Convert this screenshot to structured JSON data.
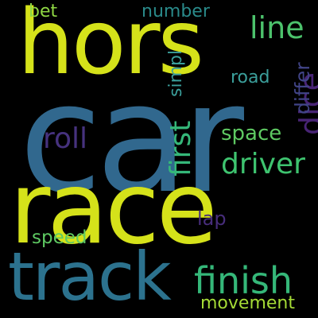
{
  "cloud": {
    "background": "#000000",
    "words": {
      "car": {
        "text": "car",
        "color": "#31688e"
      },
      "race": {
        "text": "race",
        "color": "#d5e21a"
      },
      "hors": {
        "text": "hors",
        "color": "#d5e21a"
      },
      "track": {
        "text": "track",
        "color": "#2c728e"
      },
      "finish": {
        "text": "finish",
        "color": "#35b779"
      },
      "line": {
        "text": "line",
        "color": "#4cc26c"
      },
      "driver": {
        "text": "driver",
        "color": "#3ec36f"
      },
      "roll": {
        "text": "roll",
        "color": "#46327e"
      },
      "space": {
        "text": "space",
        "color": "#5ec962"
      },
      "speed": {
        "text": "speed",
        "color": "#5ec962"
      },
      "number": {
        "text": "number",
        "color": "#2a8a8a"
      },
      "road": {
        "text": "road",
        "color": "#3b9f9b"
      },
      "bet": {
        "text": "bet",
        "color": "#8fd744"
      },
      "lap": {
        "text": "lap",
        "color": "#472d7b"
      },
      "movement": {
        "text": "movement",
        "color": "#a5db36"
      },
      "dice": {
        "text": "dice",
        "color": "#482475"
      },
      "first": {
        "text": "first",
        "color": "#35b779"
      },
      "differ": {
        "text": "differ",
        "color": "#414487"
      },
      "simpl": {
        "text": "simpl",
        "color": "#3b9f9b"
      }
    }
  }
}
